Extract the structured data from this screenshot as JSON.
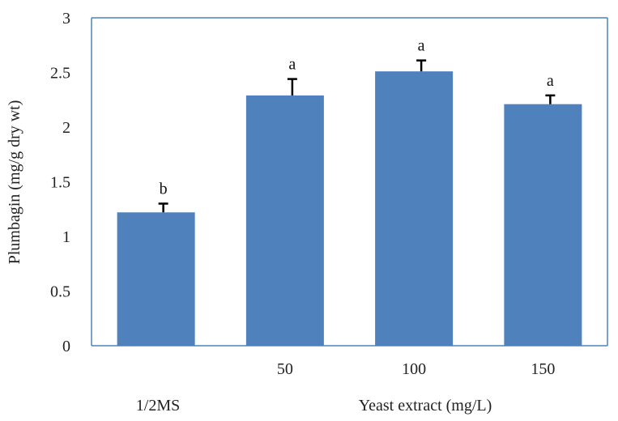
{
  "chart_data": {
    "type": "bar",
    "categories": [
      "1/2MS",
      "50",
      "100",
      "150"
    ],
    "values": [
      1.22,
      2.29,
      2.51,
      2.21
    ],
    "errors": [
      0.08,
      0.15,
      0.1,
      0.08
    ],
    "significance": [
      "b",
      "a",
      "a",
      "a"
    ],
    "ylabel": "Plumbagin  (mg/g dry wt)",
    "xlabel": "Yeast extract (mg/L)",
    "control_label": "1/2MS",
    "x_tick_labels": [
      "",
      "50",
      "100",
      "150"
    ],
    "y_ticks": [
      "0",
      "0.5",
      "1",
      "1.5",
      "2",
      "2.5",
      "3"
    ],
    "y_tick_values": [
      0,
      0.5,
      1,
      1.5,
      2,
      2.5,
      3
    ],
    "ylim": [
      0,
      3
    ],
    "grid": false,
    "legend": "none",
    "colors": {
      "bar": "#4f81bd",
      "axis": "#4f81bd",
      "error_bar": "#000000"
    }
  }
}
